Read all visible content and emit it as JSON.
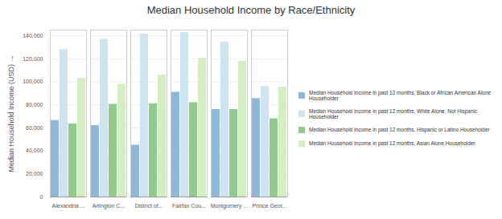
{
  "chart_data": {
    "type": "bar",
    "title": "Median Household Income by Race/Ethnicity",
    "y_label": "Median Household Income (USD)",
    "categories": [
      "Alexandria ...",
      "Arlington C...",
      "District of...",
      "Fairfax Cou...",
      "Montgomery ...",
      "Prince Geor..."
    ],
    "series": [
      {
        "name": "Median Household Income in past 12 months, Black or African American Alone Householder",
        "color": "#8db8da",
        "values": [
          66500,
          62000,
          45000,
          91000,
          76000,
          85500
        ]
      },
      {
        "name": "Median Household Income in past 12 months, White Alone, Not Hispanic Householder",
        "color": "#cfe4f1",
        "values": [
          128000,
          137000,
          141500,
          143000,
          134500,
          96000
        ]
      },
      {
        "name": "Median Household Income in past 12 months, Hispanic or Latino Householder",
        "color": "#90cb8e",
        "values": [
          63500,
          80500,
          81000,
          82000,
          76000,
          68000
        ]
      },
      {
        "name": "Median Household Income in past 12 months, Asian Alone Householder",
        "color": "#d3efc2",
        "values": [
          103000,
          98000,
          106000,
          120500,
          118000,
          95500
        ]
      }
    ],
    "ylim": [
      0,
      145000
    ],
    "yticks": [
      0,
      {
        "value": 20000,
        "label": "20,000"
      },
      {
        "value": 40000,
        "label": "40,000"
      },
      {
        "value": 60000,
        "label": "60,000"
      },
      {
        "value": 80000,
        "label": "80,000"
      },
      {
        "value": 100000,
        "label": "100,000"
      },
      {
        "value": 120000,
        "label": "120,000"
      },
      {
        "value": 140000,
        "label": "140,000"
      }
    ],
    "grid": true,
    "legend": "right"
  }
}
